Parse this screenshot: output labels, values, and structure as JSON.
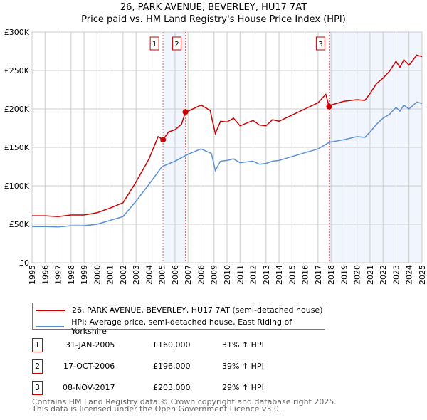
{
  "chart_data": {
    "type": "line",
    "title": "26, PARK AVENUE, BEVERLEY, HU17 7AT",
    "subtitle": "Price paid vs. HM Land Registry's House Price Index (HPI)",
    "xlim": [
      1995,
      2025
    ],
    "ylim": [
      0,
      300000
    ],
    "yticks": [
      {
        "v": 0,
        "label": "£0"
      },
      {
        "v": 50000,
        "label": "£50K"
      },
      {
        "v": 100000,
        "label": "£100K"
      },
      {
        "v": 150000,
        "label": "£150K"
      },
      {
        "v": 200000,
        "label": "£200K"
      },
      {
        "v": 250000,
        "label": "£250K"
      },
      {
        "v": 300000,
        "label": "£300K"
      }
    ],
    "xticks": [
      "1995",
      "1996",
      "1997",
      "1998",
      "1999",
      "2000",
      "2001",
      "2002",
      "2003",
      "2004",
      "2005",
      "2006",
      "2007",
      "2008",
      "2009",
      "2010",
      "2011",
      "2012",
      "2013",
      "2014",
      "2015",
      "2016",
      "2017",
      "2018",
      "2019",
      "2020",
      "2021",
      "2022",
      "2023",
      "2024",
      "2025"
    ],
    "grid": true,
    "series": [
      {
        "name": "26, PARK AVENUE, BEVERLEY, HU17 7AT (semi-detached house)",
        "color": "#cc0000",
        "x": [
          1995,
          1996,
          1997,
          1998,
          1999,
          2000,
          2001,
          2002,
          2003,
          2004,
          2004.7,
          2005.08,
          2005.5,
          2006,
          2006.5,
          2006.8,
          2007,
          2008,
          2008.7,
          2009.1,
          2009.5,
          2010,
          2010.5,
          2011,
          2012,
          2012.5,
          2013,
          2013.5,
          2014,
          2015,
          2016,
          2017,
          2017.6,
          2017.85,
          2018,
          2019,
          2020,
          2020.6,
          2021,
          2021.5,
          2022,
          2022.5,
          2023,
          2023.3,
          2023.6,
          2024,
          2024.6,
          2025
        ],
        "y": [
          61,
          61,
          60,
          62,
          62,
          65,
          71,
          78,
          105,
          135,
          164,
          160,
          170,
          173,
          180,
          196,
          197,
          205,
          198,
          168,
          184,
          183,
          188,
          178,
          185,
          179,
          178,
          186,
          184,
          192,
          200,
          208,
          219,
          203,
          205,
          210,
          212,
          211,
          220,
          233,
          240,
          249,
          262,
          254,
          264,
          257,
          270,
          268
        ]
      },
      {
        "name": "HPI: Average price, semi-detached house, East Riding of Yorkshire",
        "color": "#5b8fd6",
        "x": [
          1995,
          1996,
          1997,
          1998,
          1999,
          2000,
          2001,
          2002,
          2003,
          2004,
          2005,
          2006,
          2007,
          2008,
          2008.8,
          2009.1,
          2009.5,
          2010,
          2010.5,
          2011,
          2012,
          2012.5,
          2013,
          2013.5,
          2014,
          2015,
          2016,
          2017,
          2017.9,
          2018,
          2019,
          2020,
          2020.6,
          2021,
          2021.5,
          2022,
          2022.5,
          2023,
          2023.3,
          2023.6,
          2024,
          2024.6,
          2025
        ],
        "y": [
          47,
          47,
          46.5,
          48,
          48,
          50,
          55,
          60,
          80,
          102,
          125,
          132,
          141,
          148,
          142,
          120,
          132,
          133,
          135,
          130,
          132,
          128,
          129,
          132,
          133,
          138,
          143,
          148,
          157,
          157,
          160,
          164,
          163,
          170,
          180,
          188,
          193,
          202,
          197,
          205,
          200,
          209,
          207
        ]
      }
    ],
    "sales": [
      {
        "n": "1",
        "date": "31-JAN-2005",
        "x": 2005.08,
        "price": "£160,000",
        "value": 160,
        "hpi": "31% ↑ HPI"
      },
      {
        "n": "2",
        "date": "17-OCT-2006",
        "x": 2006.8,
        "price": "£196,000",
        "value": 196,
        "hpi": "39% ↑ HPI"
      },
      {
        "n": "3",
        "date": "08-NOV-2017",
        "x": 2017.85,
        "price": "£203,000",
        "value": 203,
        "hpi": "29% ↑ HPI"
      }
    ],
    "shaded": [
      [
        2005.08,
        2006.8
      ],
      [
        2017.85,
        2025
      ]
    ]
  },
  "footer": [
    "Contains HM Land Registry data © Crown copyright and database right 2025.",
    "This data is licensed under the Open Government Licence v3.0."
  ]
}
